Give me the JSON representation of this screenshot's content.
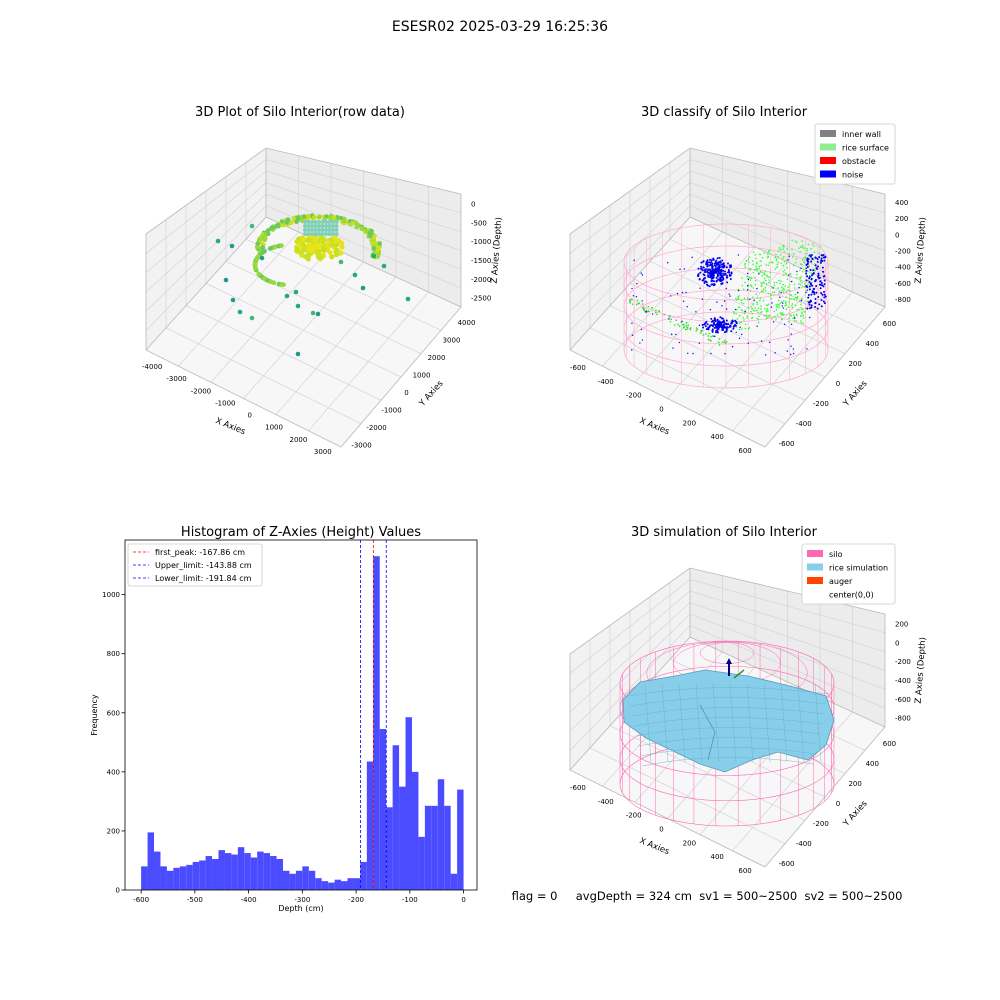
{
  "suptitle": "ESESR02 2025-03-29 16:25:36",
  "status_text": "flag = 0     avgDepth = 324 cm  sv1 = 500~2500  sv2 = 500~2500",
  "panels": {
    "raw": {
      "title": "3D Plot of Silo Interior(row data)",
      "xlabel": "X Axies",
      "ylabel": "Y Axies",
      "zlabel": "Z Axies (Depth)",
      "x_ticks": [
        "-4000",
        "-3000",
        "-2000",
        "-1000",
        "0",
        "1000",
        "2000",
        "3000"
      ],
      "y_ticks": [
        "-3000",
        "-2000",
        "-1000",
        "0",
        "1000",
        "2000",
        "3000",
        "4000"
      ],
      "z_ticks": [
        "0",
        "-500",
        "-1000",
        "-1500",
        "-2000",
        "-2500"
      ]
    },
    "classify": {
      "title": "3D classify of Silo Interior",
      "xlabel": "X Axies",
      "ylabel": "Y Axies",
      "zlabel": "Z Axies (Depth)",
      "x_ticks": [
        "-600",
        "-400",
        "-200",
        "0",
        "200",
        "400",
        "600"
      ],
      "y_ticks": [
        "-600",
        "-400",
        "-200",
        "0",
        "200",
        "400",
        "600"
      ],
      "z_ticks": [
        "400",
        "200",
        "0",
        "-200",
        "-400",
        "-600",
        "-800"
      ],
      "legend": [
        {
          "label": "inner wall",
          "color": "#808080"
        },
        {
          "label": "rice surface",
          "color": "#90ee90"
        },
        {
          "label": "obstacle",
          "color": "#ff0000"
        },
        {
          "label": "noise",
          "color": "#0000ff"
        }
      ]
    },
    "simulation": {
      "title": "3D simulation of Silo Interior",
      "xlabel": "X Axies",
      "ylabel": "Y Axies",
      "zlabel": "Z Axies (Depth)",
      "x_ticks": [
        "-600",
        "-400",
        "-200",
        "0",
        "200",
        "400",
        "600"
      ],
      "y_ticks": [
        "-600",
        "-400",
        "-200",
        "0",
        "200",
        "400",
        "600"
      ],
      "z_ticks": [
        "200",
        "0",
        "-200",
        "-400",
        "-600",
        "-800"
      ],
      "legend": [
        {
          "label": "silo",
          "color": "#ff69b4"
        },
        {
          "label": "rice simulation",
          "color": "#87ceeb"
        },
        {
          "label": "auger",
          "color": "#ff4500"
        },
        {
          "label": "center(0,0)",
          "color": "#ffffff"
        }
      ]
    }
  },
  "chart_data": {
    "type": "bar",
    "title": "Histogram of Z-Axies (Height) Values",
    "xlabel": "Depth (cm)",
    "ylabel": "Frequency",
    "xlim": [
      -630,
      25
    ],
    "ylim": [
      0,
      1185
    ],
    "x_ticks": [
      -600,
      -500,
      -400,
      -300,
      -200,
      -100,
      0
    ],
    "y_ticks": [
      0,
      200,
      400,
      600,
      800,
      1000
    ],
    "bar_color": "#4b4bff",
    "bin_start": -600,
    "bin_width": 12,
    "values": [
      80,
      195,
      130,
      80,
      65,
      75,
      80,
      85,
      95,
      100,
      115,
      105,
      135,
      125,
      120,
      145,
      125,
      110,
      130,
      125,
      115,
      105,
      65,
      55,
      65,
      80,
      65,
      40,
      30,
      25,
      35,
      30,
      40,
      40,
      95,
      435,
      1130,
      545,
      280,
      490,
      350,
      585,
      400,
      180,
      285,
      285,
      375,
      285,
      55,
      340
    ],
    "vlines": [
      {
        "label": "first_peak: -167.86 cm",
        "x": -167.86,
        "color": "#ff0000"
      },
      {
        "label": "Upper_limit: -143.88 cm",
        "x": -143.88,
        "color": "#0000ff"
      },
      {
        "label": "Lower_limit: -191.84 cm",
        "x": -191.84,
        "color": "#0000ff"
      }
    ]
  }
}
